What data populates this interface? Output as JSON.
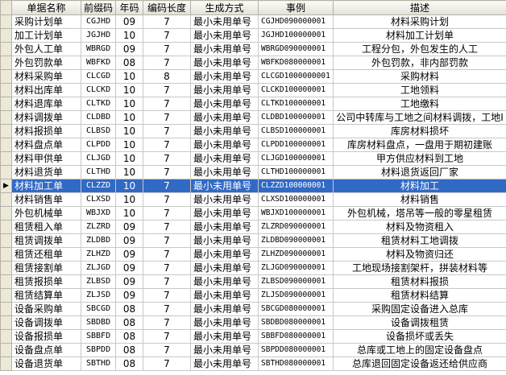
{
  "table": {
    "headers": [
      "单据名称",
      "前缀码",
      "年码",
      "编码长度",
      "生成方式",
      "事例",
      "描述"
    ],
    "rows": [
      [
        "采购计划单",
        "CGJHD",
        "09",
        "7",
        "最小未用单号",
        "CGJHD090000001",
        "材料采购计划"
      ],
      [
        "加工计划单",
        "JGJHD",
        "10",
        "7",
        "最小未用单号",
        "JGJHD100000001",
        "材料加工计划单"
      ],
      [
        "外包人工单",
        "WBRGD",
        "09",
        "7",
        "最小未用单号",
        "WBRGD090000001",
        "工程分包，外包发生的人工"
      ],
      [
        "外包罚款单",
        "WBFKD",
        "08",
        "7",
        "最小未用单号",
        "WBFKD080000001",
        "外包罚款，非内部罚款"
      ],
      [
        "材料采购单",
        "CLCGD",
        "10",
        "8",
        "最小未用单号",
        "CLCGD1000000001",
        "采购材料"
      ],
      [
        "材料出库单",
        "CLCKD",
        "10",
        "7",
        "最小未用单号",
        "CLCKD100000001",
        "工地领料"
      ],
      [
        "材料退库单",
        "CLTKD",
        "10",
        "7",
        "最小未用单号",
        "CLTKD100000001",
        "工地缴料"
      ],
      [
        "材料调拨单",
        "CLDBD",
        "10",
        "7",
        "最小未用单号",
        "CLDBD100000001",
        "公司中转库与工地之间材料调拨，工地I"
      ],
      [
        "材料报损单",
        "CLBSD",
        "10",
        "7",
        "最小未用单号",
        "CLBSD100000001",
        "库房材料损坏"
      ],
      [
        "材料盘点单",
        "CLPDD",
        "10",
        "7",
        "最小未用单号",
        "CLPDD100000001",
        "库房材料盘点，一盘用于期初建账"
      ],
      [
        "材料甲供单",
        "CLJGD",
        "10",
        "7",
        "最小未用单号",
        "CLJGD100000001",
        "甲方供应材料到工地"
      ],
      [
        "材料退货单",
        "CLTHD",
        "10",
        "7",
        "最小未用单号",
        "CLTHD100000001",
        "材料退货返回厂家"
      ],
      [
        "材料加工单",
        "CLZZD",
        "10",
        "7",
        "最小未用单号",
        "CLZZD100000001",
        "材料加工"
      ],
      [
        "材料销售单",
        "CLXSD",
        "10",
        "7",
        "最小未用单号",
        "CLXSD100000001",
        "材料销售"
      ],
      [
        "外包机械单",
        "WBJXD",
        "10",
        "7",
        "最小未用单号",
        "WBJXD100000001",
        "外包机械，塔吊等一般的零星租赁"
      ],
      [
        "租赁租入单",
        "ZLZRD",
        "09",
        "7",
        "最小未用单号",
        "ZLZRD090000001",
        "材料及物资租入"
      ],
      [
        "租赁调拨单",
        "ZLDBD",
        "09",
        "7",
        "最小未用单号",
        "ZLDBD090000001",
        "租赁材料工地调拨"
      ],
      [
        "租赁还租单",
        "ZLHZD",
        "09",
        "7",
        "最小未用单号",
        "ZLHZD090000001",
        "材料及物资归还"
      ],
      [
        "租赁接割单",
        "ZLJGD",
        "09",
        "7",
        "最小未用单号",
        "ZLJGD090000001",
        "工地现场接割架杆，拼装材料等"
      ],
      [
        "租赁报损单",
        "ZLBSD",
        "09",
        "7",
        "最小未用单号",
        "ZLBSD090000001",
        "租赁材料报损"
      ],
      [
        "租赁结算单",
        "ZLJSD",
        "09",
        "7",
        "最小未用单号",
        "ZLJSD090000001",
        "租赁材料结算"
      ],
      [
        "设备采购单",
        "SBCGD",
        "08",
        "7",
        "最小未用单号",
        "SBCGD080000001",
        "采购固定设备进入总库"
      ],
      [
        "设备调拨单",
        "SBDBD",
        "08",
        "7",
        "最小未用单号",
        "SBDBD080000001",
        "设备调拨租赁"
      ],
      [
        "设备报损单",
        "SBBFD",
        "08",
        "7",
        "最小未用单号",
        "SBBFD080000001",
        "设备损坏或丢失"
      ],
      [
        "设备盘点单",
        "SBPDD",
        "08",
        "7",
        "最小未用单号",
        "SBPDD080000001",
        "总库或工地上的固定设备盘点"
      ],
      [
        "设备退货单",
        "SBTHD",
        "08",
        "7",
        "最小未用单号",
        "SBTHD080000001",
        "总库退回固定设备返还给供应商"
      ]
    ]
  }
}
